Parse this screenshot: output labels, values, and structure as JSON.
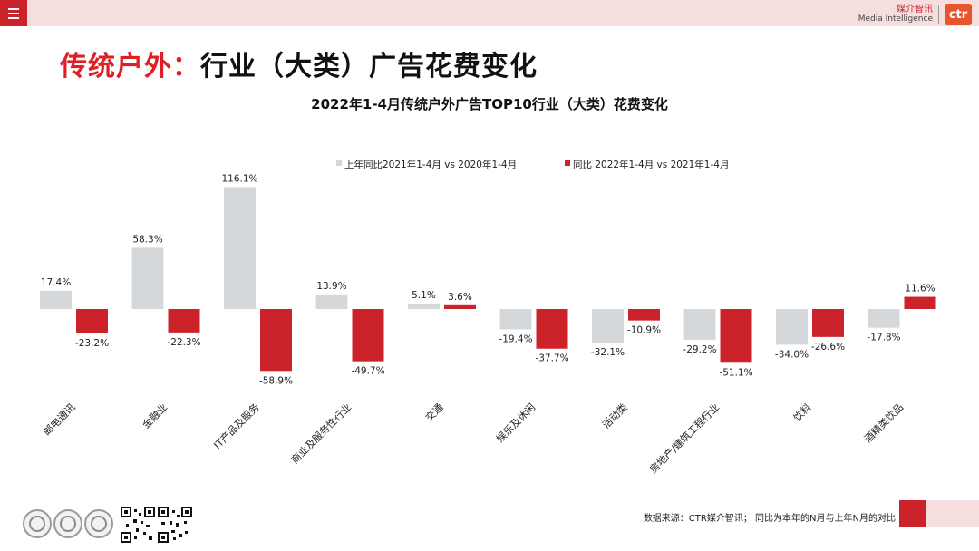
{
  "header": {
    "logo_cn": "媒介智讯",
    "logo_en": "Media Intelligence",
    "logo_mark": "ctr"
  },
  "page": {
    "title_red": "传统户外：",
    "title_black": "行业（大类）广告花费变化"
  },
  "footer": {
    "source": "数据来源：CTR媒介智讯；  同比为本年的N月与上年N月的对比"
  },
  "colors": {
    "accent_red": "#cc2229",
    "prev_bar": "#d4d8db",
    "curr_bar": "#cc2229"
  },
  "chart_data": {
    "type": "bar",
    "title": "2022年1-4月传统户外广告TOP10行业（大类）花费变化",
    "xlabel": "",
    "ylabel": "",
    "legend_position": "top-center",
    "categories": [
      "邮电通讯",
      "金融业",
      "IT产品及服务",
      "商业及服务性行业",
      "交通",
      "娱乐及休闲",
      "活动类",
      "房地产/建筑工程行业",
      "饮料",
      "酒精类饮品"
    ],
    "series": [
      {
        "name": "上年同比2021年1-4月  vs  2020年1-4月",
        "values": [
          17.4,
          58.3,
          116.1,
          13.9,
          5.1,
          -19.4,
          -32.1,
          -29.2,
          -34.0,
          -17.8
        ],
        "labels": [
          "17.4%",
          "58.3%",
          "116.1%",
          "13.9%",
          "5.1%",
          "-19.4%",
          "-32.1%",
          "-29.2%",
          "-34.0%",
          "-17.8%"
        ]
      },
      {
        "name": "同比 2022年1-4月  vs  2021年1-4月",
        "values": [
          -23.2,
          -22.3,
          -58.9,
          -49.7,
          3.6,
          -37.7,
          -10.9,
          -51.1,
          -26.6,
          11.6
        ],
        "labels": [
          "-23.2%",
          "-22.3%",
          "-58.9%",
          "-49.7%",
          "3.6%",
          "-37.7%",
          "-10.9%",
          "-51.1%",
          "-26.6%",
          "11.6%"
        ]
      }
    ]
  }
}
